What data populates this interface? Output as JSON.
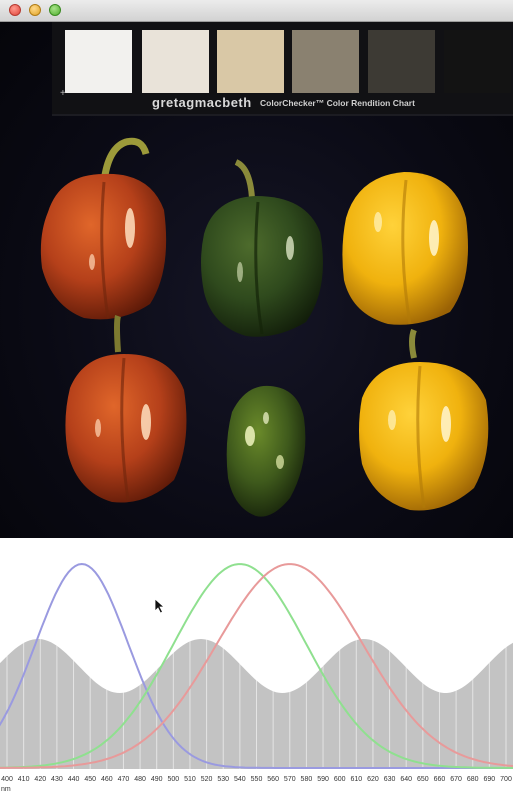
{
  "window": {
    "controls": [
      "close",
      "minimize",
      "zoom"
    ]
  },
  "color_checker": {
    "brand": "gretagmacbeth",
    "name": "ColorChecker™ Color Rendition Chart",
    "swatches": [
      "#f2f1ee",
      "#e9e3d9",
      "#d9c8a6",
      "#8a8170",
      "#3d3a34",
      "#131313"
    ]
  },
  "photo": {
    "subject": "",
    "pepper_colors": {
      "red": "#b5401a",
      "green": "#2f4a1d",
      "yellow": "#f0b20e"
    }
  },
  "spectrum": {
    "unit": "nm",
    "tick_labels": [
      "400",
      "410",
      "420",
      "430",
      "440",
      "450",
      "460",
      "470",
      "480",
      "490",
      "500",
      "510",
      "520",
      "530",
      "540",
      "550",
      "560",
      "570",
      "580",
      "590",
      "600",
      "610",
      "620",
      "630",
      "640",
      "650",
      "660",
      "670",
      "680",
      "690",
      "700"
    ],
    "curves": [
      {
        "color": "#9a9ae0",
        "peak_nm": 445
      },
      {
        "color": "#8fe08f",
        "peak_nm": 540
      },
      {
        "color": "#e89a9a",
        "peak_nm": 570
      }
    ],
    "background_color": "#c3c3c3"
  }
}
